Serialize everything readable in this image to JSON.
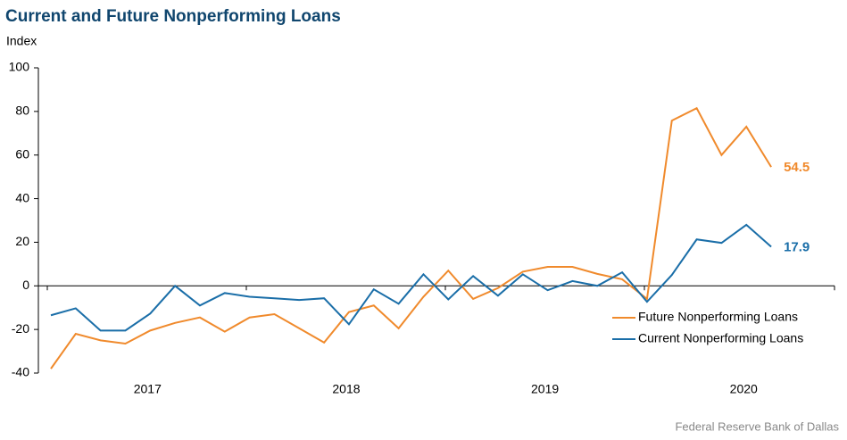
{
  "chart_data": {
    "type": "line",
    "title": "Current and Future Nonperforming Loans",
    "y_label": "Index",
    "source": "Federal Reserve Bank of Dallas",
    "categories": [
      null,
      null,
      null,
      null,
      "2017",
      null,
      null,
      null,
      null,
      null,
      null,
      null,
      "2018",
      null,
      null,
      null,
      null,
      null,
      null,
      null,
      "2019",
      null,
      null,
      null,
      null,
      null,
      null,
      null,
      "2020",
      null
    ],
    "series": [
      {
        "name": "Future Nonperforming Loans",
        "color": "#f08a2c",
        "values": [
          -38,
          -22,
          -25,
          -26.5,
          -20.5,
          -17,
          -14.5,
          -21,
          -14.5,
          -13,
          -19.5,
          -26,
          -12,
          -9,
          -19.5,
          -5,
          7,
          -6,
          -1,
          6.5,
          8.7,
          8.7,
          5.5,
          3,
          -6,
          75.8,
          81.5,
          60,
          73,
          54.5
        ]
      },
      {
        "name": "Current Nonperforming Loans",
        "color": "#1a6ea8",
        "values": [
          -13.5,
          -10.3,
          -20.5,
          -20.5,
          -12.7,
          0,
          -9,
          -3.3,
          -5,
          -5.7,
          -6.5,
          -5.7,
          -17.6,
          -1.6,
          -8.2,
          5.3,
          -6.2,
          4.5,
          -4.5,
          5.3,
          -2,
          2.2,
          0,
          6.2,
          -7.3,
          5,
          21.3,
          19.7,
          28,
          17.9
        ]
      }
    ],
    "ylim": [
      -40,
      100
    ],
    "yticks": [
      -40,
      -20,
      0,
      20,
      40,
      60,
      80,
      100
    ],
    "legend": "lower right"
  }
}
